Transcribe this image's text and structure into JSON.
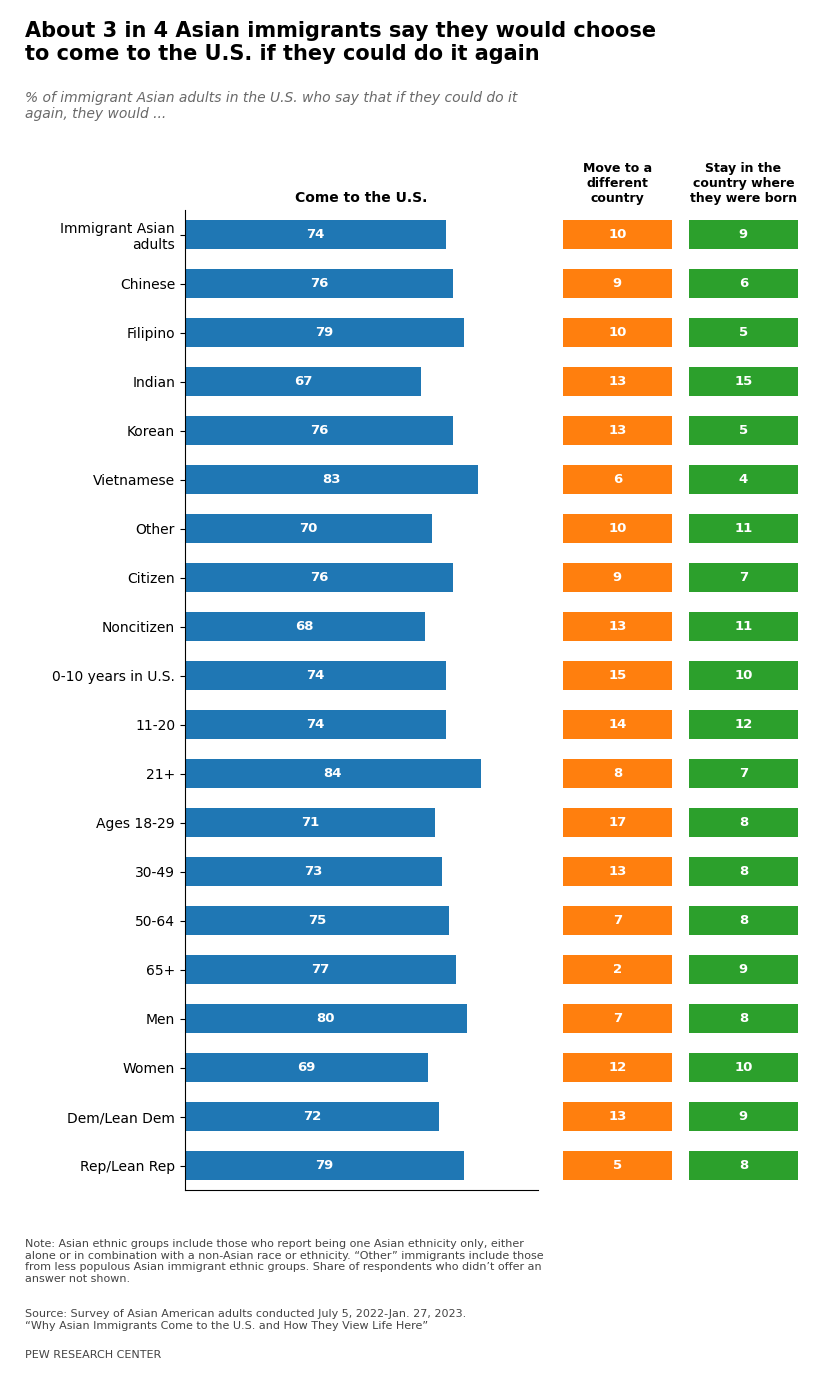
{
  "chart_data": {
    "type": "bar",
    "orientation": "horizontal",
    "title": "About 3 in 4 Asian immigrants say they would choose\nto come to the U.S. if they could do it again",
    "subtitle": "% of immigrant Asian adults in the U.S. who say that if they could do it\nagain, they would ...",
    "categories": [
      "Immigrant Asian\nadults",
      "Chinese",
      "Filipino",
      "Indian",
      "Korean",
      "Vietnamese",
      "Other",
      "Citizen",
      "Noncitizen",
      "0-10 years in U.S.",
      "11-20",
      "21+",
      "Ages 18-29",
      "30-49",
      "50-64",
      "65+",
      "Men",
      "Women",
      "Dem/Lean Dem",
      "Rep/Lean Rep"
    ],
    "series": [
      {
        "name": "Come to the U.S.",
        "type": "bar",
        "values": [
          74,
          76,
          79,
          67,
          76,
          83,
          70,
          76,
          68,
          74,
          74,
          84,
          71,
          73,
          75,
          77,
          80,
          69,
          72,
          79
        ]
      },
      {
        "name": "Move to a\ndifferent\ncountry",
        "type": "table",
        "values": [
          10,
          9,
          10,
          13,
          13,
          6,
          10,
          9,
          13,
          15,
          14,
          8,
          17,
          13,
          7,
          2,
          7,
          12,
          13,
          5
        ]
      },
      {
        "name": "Stay in the\ncountry where\nthey were born",
        "type": "table",
        "values": [
          9,
          6,
          5,
          15,
          5,
          4,
          11,
          7,
          11,
          10,
          12,
          7,
          8,
          8,
          8,
          9,
          8,
          10,
          9,
          8
        ]
      }
    ],
    "xlim": [
      0,
      100
    ],
    "data_labels": true,
    "tick_labels": "y",
    "grid": false,
    "annotations": [
      "Note: Asian ethnic groups include those who report being one Asian ethnicity only, either\nalone or in combination with a non-Asian race or ethnicity. “Other” immigrants include those\nfrom less populous Asian immigrant ethnic groups. Share of respondents who didn’t offer an\nanswer not shown.",
      "Source: Survey of Asian American adults conducted July 5, 2022-Jan. 27, 2023.\n“Why Asian Immigrants Come to the U.S. and How They View Life Here”",
      "PEW RESEARCH CENTER"
    ]
  }
}
